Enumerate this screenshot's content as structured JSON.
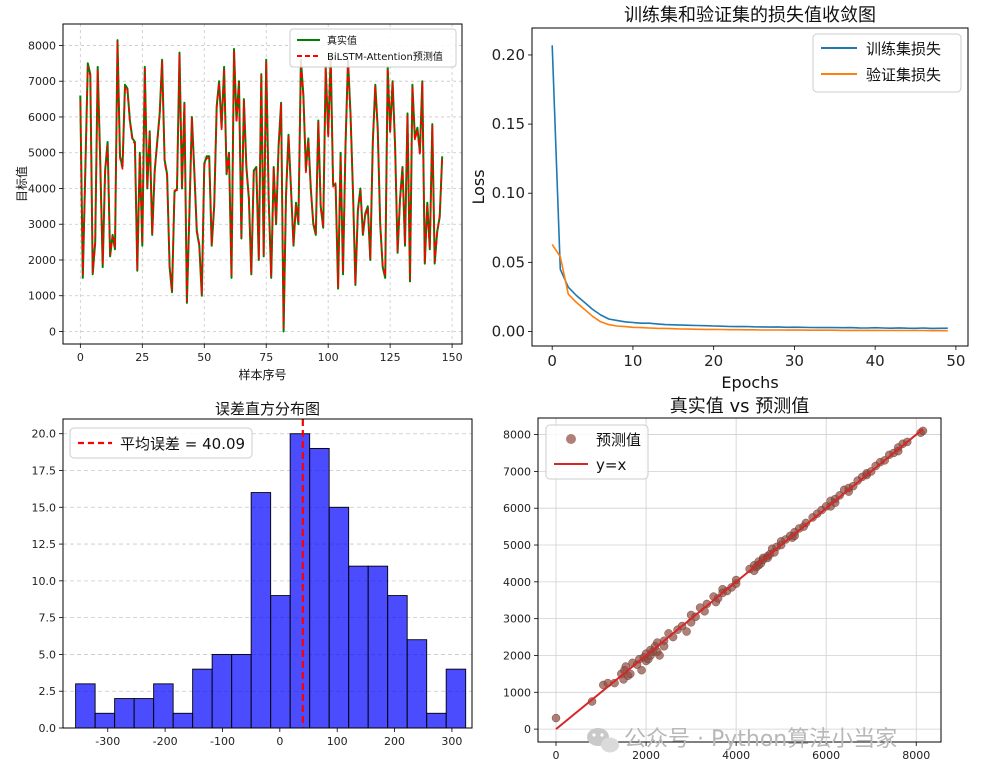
{
  "watermark": "公众号 · Python算法小当家",
  "chart_data": [
    {
      "type": "line",
      "xlabel": "样本序号",
      "ylabel": "目标值",
      "xlim": [
        -7,
        154
      ],
      "ylim": [
        -350,
        8600
      ],
      "xticks": [
        0,
        25,
        50,
        75,
        100,
        125,
        150
      ],
      "yticks": [
        0,
        1000,
        2000,
        3000,
        4000,
        5000,
        6000,
        7000,
        8000
      ],
      "grid": "dashed",
      "legend_position": "top-right",
      "series": [
        {
          "name": "真实值",
          "color": "#008000",
          "style": "solid",
          "values": [
            6600,
            1500,
            4500,
            7500,
            7200,
            1600,
            2500,
            7400,
            4800,
            1800,
            4500,
            5300,
            2100,
            2700,
            2300,
            8150,
            4900,
            4600,
            6900,
            6800,
            5900,
            5400,
            5300,
            1700,
            5000,
            2400,
            7400,
            4000,
            5600,
            2700,
            4500,
            5300,
            6100,
            7600,
            4800,
            4400,
            1800,
            1100,
            3900,
            4000,
            7800,
            4000,
            6400,
            800,
            3300,
            6000,
            4500,
            2800,
            2400,
            1000,
            4700,
            4900,
            4900,
            2400,
            3500,
            6300,
            7000,
            5700,
            7400,
            4400,
            5000,
            1500,
            7900,
            5900,
            7000,
            2600,
            6500,
            4600,
            3700,
            1600,
            4500,
            4600,
            2000,
            7200,
            2100,
            7600,
            3700,
            1500,
            4600,
            3000,
            5200,
            6400,
            0,
            3800,
            5500,
            4000,
            2400,
            3600,
            3000,
            7600,
            6600,
            4500,
            5400,
            4000,
            3000,
            2700,
            5900,
            3500,
            2900,
            7400,
            5500,
            7700,
            4100,
            4100,
            1200,
            5000,
            1600,
            5200,
            7600,
            6100,
            3900,
            1300,
            3400,
            4000,
            2700,
            3300,
            3500,
            2000,
            5300,
            6900,
            5700,
            3000,
            1800,
            1500,
            7400,
            5600,
            7000,
            5200,
            2200,
            3700,
            4600,
            2400,
            6100,
            1400,
            6900,
            5400,
            5700,
            5000,
            7000,
            1900,
            3600,
            2300,
            5800,
            1900,
            2800,
            3200,
            4900
          ]
        },
        {
          "name": "BiLSTM-Attention预测值",
          "color": "#ff0000",
          "style": "dashed",
          "values": [
            6450,
            1600,
            4400,
            7400,
            7150,
            1650,
            2450,
            7300,
            4750,
            1900,
            4450,
            5200,
            2150,
            2650,
            2350,
            8100,
            4850,
            4550,
            6850,
            6750,
            5850,
            5350,
            5250,
            1750,
            4950,
            2450,
            7350,
            4050,
            5550,
            2750,
            4450,
            5250,
            6050,
            7550,
            4750,
            4350,
            1850,
            1150,
            3950,
            3950,
            7750,
            4050,
            6350,
            850,
            3350,
            5950,
            4450,
            2850,
            2450,
            1050,
            4650,
            4850,
            4850,
            2450,
            3550,
            6250,
            6950,
            5650,
            7350,
            4450,
            4950,
            1550,
            7850,
            5850,
            6950,
            2650,
            6450,
            4550,
            3750,
            1650,
            4450,
            4550,
            2050,
            7150,
            2150,
            7550,
            3650,
            1550,
            4550,
            3050,
            5150,
            6350,
            100,
            3750,
            5450,
            3950,
            2450,
            3550,
            3050,
            7550,
            6550,
            4450,
            5350,
            3950,
            3050,
            2750,
            5850,
            3450,
            2950,
            7350,
            5450,
            7650,
            4050,
            4150,
            1250,
            4950,
            1650,
            5150,
            7550,
            6050,
            3850,
            1350,
            3350,
            3950,
            2750,
            3250,
            3450,
            2050,
            5250,
            6850,
            5650,
            3050,
            1850,
            1550,
            7350,
            5550,
            6950,
            5150,
            2250,
            3650,
            4550,
            2450,
            6050,
            1450,
            6850,
            5350,
            5650,
            4950,
            6950,
            1950,
            3550,
            2350,
            5750,
            1950,
            2750,
            3250,
            4850
          ]
        }
      ]
    },
    {
      "type": "line",
      "title": "训练集和验证集的损失值收敛图",
      "xlabel": "Epochs",
      "ylabel": "Loss",
      "xlim": [
        -2.5,
        51.5
      ],
      "ylim": [
        -0.0105,
        0.2195
      ],
      "xticks": [
        0,
        10,
        20,
        30,
        40,
        50
      ],
      "yticks": [
        0.0,
        0.05,
        0.1,
        0.15,
        0.2
      ],
      "grid": "off",
      "legend_position": "top-right",
      "x": [
        0,
        1,
        2,
        3,
        4,
        5,
        6,
        7,
        8,
        9,
        10,
        11,
        12,
        13,
        14,
        15,
        16,
        17,
        18,
        19,
        20,
        21,
        22,
        23,
        24,
        25,
        26,
        27,
        28,
        29,
        30,
        31,
        32,
        33,
        34,
        35,
        36,
        37,
        38,
        39,
        40,
        41,
        42,
        43,
        44,
        45,
        46,
        47,
        48,
        49
      ],
      "series": [
        {
          "name": "训练集损失",
          "color": "#1f77b4",
          "values": [
            0.207,
            0.045,
            0.032,
            0.026,
            0.021,
            0.016,
            0.012,
            0.009,
            0.008,
            0.007,
            0.0065,
            0.006,
            0.006,
            0.0055,
            0.005,
            0.0048,
            0.0046,
            0.0045,
            0.0043,
            0.0042,
            0.004,
            0.0038,
            0.0036,
            0.0035,
            0.0036,
            0.0034,
            0.0033,
            0.0032,
            0.0033,
            0.003,
            0.0031,
            0.003,
            0.0029,
            0.0028,
            0.0029,
            0.0028,
            0.0027,
            0.0028,
            0.0026,
            0.0025,
            0.0027,
            0.0025,
            0.0024,
            0.0026,
            0.0024,
            0.0023,
            0.0025,
            0.0022,
            0.0023,
            0.0024
          ]
        },
        {
          "name": "验证集损失",
          "color": "#ff7f0e",
          "values": [
            0.063,
            0.054,
            0.027,
            0.021,
            0.016,
            0.011,
            0.007,
            0.005,
            0.004,
            0.0035,
            0.003,
            0.0028,
            0.0025,
            0.0023,
            0.0022,
            0.002,
            0.0018,
            0.0017,
            0.0016,
            0.0015,
            0.0015,
            0.0014,
            0.0013,
            0.0013,
            0.0012,
            0.0012,
            0.0011,
            0.0011,
            0.0011,
            0.001,
            0.001,
            0.001,
            0.0009,
            0.0009,
            0.0009,
            0.0009,
            0.0008,
            0.0008,
            0.0008,
            0.0008,
            0.0008,
            0.0007,
            0.0007,
            0.0007,
            0.0007,
            0.0007,
            0.0007,
            0.0006,
            0.0006,
            0.0006
          ]
        }
      ]
    },
    {
      "type": "bar",
      "title": "误差直方分布图",
      "xlim": [
        -378,
        335
      ],
      "ylim": [
        0,
        21
      ],
      "xticks": [
        -300,
        -200,
        -100,
        0,
        100,
        200,
        300
      ],
      "yticks": [
        0.0,
        2.5,
        5.0,
        7.5,
        10.0,
        12.5,
        15.0,
        17.5,
        20.0
      ],
      "grid": "dashed-horizontal",
      "legend_position": "top-left",
      "bin_edges": [
        -356,
        -322,
        -288,
        -254,
        -220,
        -186,
        -152,
        -118,
        -84,
        -50,
        -16,
        18,
        52,
        86,
        120,
        154,
        188,
        222,
        256,
        290,
        324
      ],
      "counts": [
        3,
        1,
        2,
        2,
        3,
        1,
        4,
        5,
        5,
        16,
        9,
        20,
        19,
        15,
        11,
        11,
        9,
        6,
        1,
        4
      ],
      "bar_color": "#0000ff",
      "mean_error": 40.09,
      "mean_label": "平均误差 = 40.09",
      "mean_line_color": "#ff0000"
    },
    {
      "type": "scatter",
      "title": "真实值 vs 预测值",
      "xlim": [
        -400,
        8550
      ],
      "ylim": [
        -350,
        8450
      ],
      "xticks": [
        0,
        2000,
        4000,
        6000,
        8000
      ],
      "yticks": [
        0,
        1000,
        2000,
        3000,
        4000,
        5000,
        6000,
        7000,
        8000
      ],
      "grid": "on",
      "legend_position": "top-left",
      "point_color": "#8b4a3f",
      "line_color": "#d62728",
      "series": [
        {
          "name": "预测值",
          "x": [
            0,
            800,
            1050,
            1150,
            1300,
            1450,
            1500,
            1520,
            1550,
            1600,
            1650,
            1700,
            1800,
            1850,
            1900,
            1950,
            2000,
            2000,
            2050,
            2100,
            2100,
            2150,
            2200,
            2250,
            2250,
            2300,
            2400,
            2400,
            2500,
            2600,
            2700,
            2800,
            2900,
            3000,
            3000,
            3100,
            3200,
            3300,
            3350,
            3500,
            3550,
            3600,
            3700,
            3700,
            3800,
            3900,
            4000,
            4000,
            4300,
            4400,
            4400,
            4450,
            4500,
            4500,
            4550,
            4600,
            4600,
            4700,
            4700,
            4750,
            4800,
            4850,
            4900,
            5000,
            5000,
            5100,
            5200,
            5250,
            5300,
            5300,
            5400,
            5500,
            5550,
            5700,
            5800,
            5900,
            6000,
            6100,
            6100,
            6200,
            6200,
            6300,
            6400,
            6500,
            6500,
            6600,
            6700,
            6800,
            6900,
            6900,
            7000,
            7100,
            7200,
            7300,
            7400,
            7500,
            7600,
            7600,
            7700,
            7800,
            8100,
            8150
          ],
          "y": [
            300,
            750,
            1200,
            1250,
            1250,
            1500,
            1350,
            1600,
            1700,
            1450,
            1500,
            1800,
            1750,
            1900,
            1600,
            1950,
            2050,
            1850,
            1900,
            2150,
            2000,
            2100,
            2250,
            2100,
            2350,
            2000,
            2400,
            2250,
            2600,
            2500,
            2700,
            2800,
            2650,
            3100,
            2900,
            3050,
            3300,
            3200,
            3400,
            3600,
            3450,
            3550,
            3700,
            3800,
            3750,
            3850,
            3950,
            4050,
            4350,
            4300,
            4450,
            4400,
            4550,
            4450,
            4500,
            4650,
            4600,
            4700,
            4650,
            4750,
            4900,
            4800,
            4950,
            5000,
            5100,
            5150,
            5250,
            5200,
            5350,
            5250,
            5450,
            5500,
            5600,
            5750,
            5850,
            5950,
            6050,
            6050,
            6200,
            6250,
            6150,
            6350,
            6500,
            6450,
            6550,
            6600,
            6750,
            6850,
            6900,
            6950,
            7000,
            7150,
            7250,
            7300,
            7450,
            7500,
            7650,
            7550,
            7750,
            7800,
            8050,
            8100
          ]
        },
        {
          "name": "y=x",
          "x": [
            0,
            8150
          ],
          "y": [
            0,
            8150
          ]
        }
      ]
    }
  ]
}
